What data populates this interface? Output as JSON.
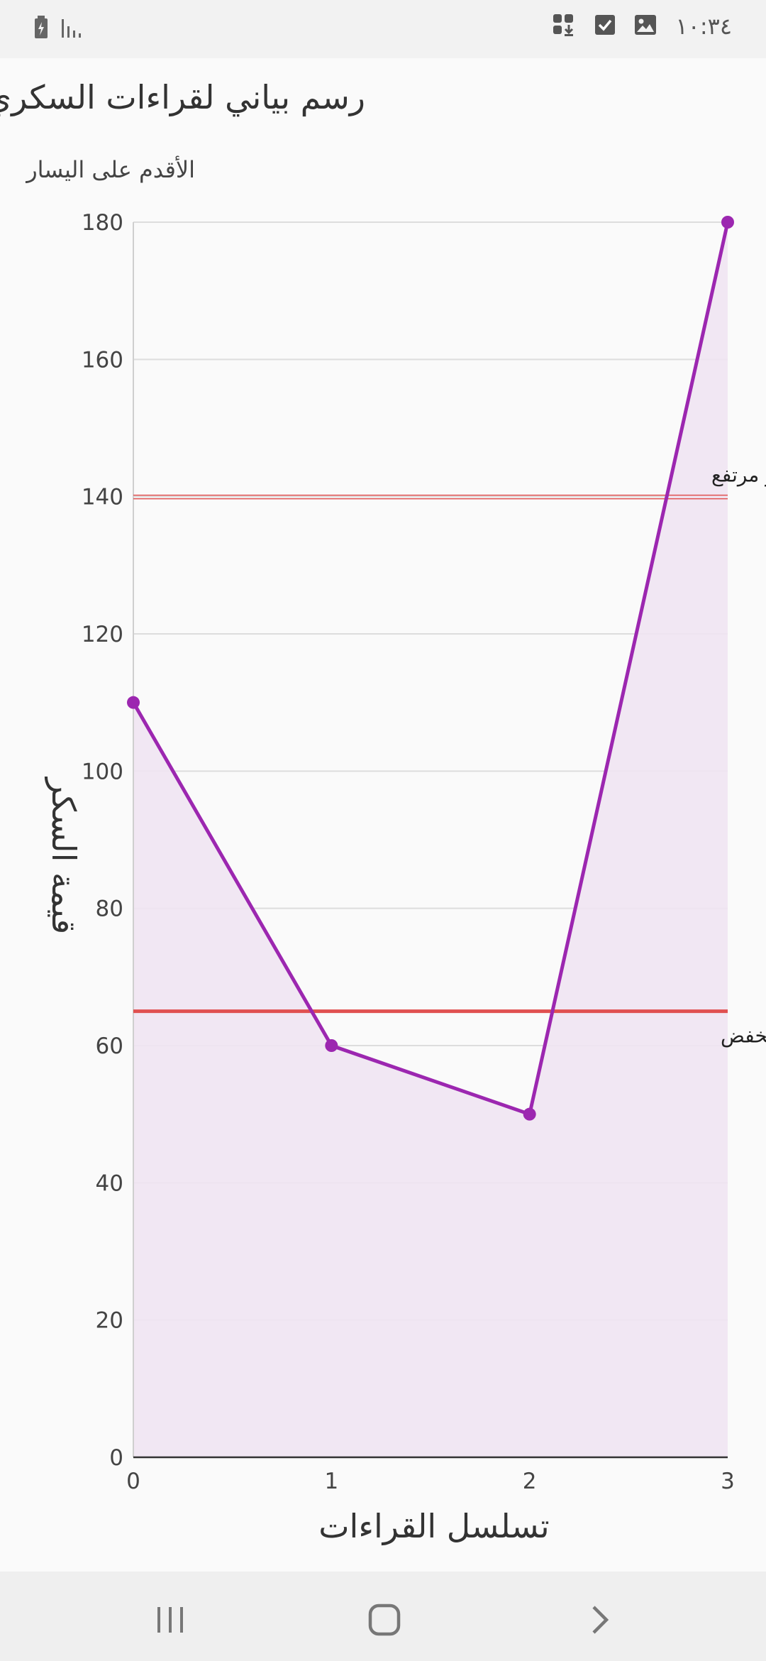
{
  "status_bar": {
    "time": "١٠:٣٤",
    "left_icons": [
      "battery-charging-icon",
      "signal-icon"
    ],
    "right_icons": [
      "app-download-icon",
      "checkbox-icon",
      "image-icon"
    ]
  },
  "page": {
    "title": "رسم بياني لقراءات السكري",
    "subtitle": "الأقدم على اليسار"
  },
  "chart_data": {
    "type": "line",
    "x": [
      0,
      1,
      2,
      3
    ],
    "x_ticks": [
      "0",
      "1",
      "2",
      "3"
    ],
    "y_ticks": [
      "0",
      "20",
      "40",
      "60",
      "80",
      "100",
      "120",
      "140",
      "160",
      "180"
    ],
    "series": [
      {
        "values": [
          110,
          60,
          50,
          180
        ]
      }
    ],
    "xlabel": "تسلسل القراءات",
    "ylabel": "قيمة السكر",
    "xlim": [
      0,
      3
    ],
    "ylim": [
      0,
      180
    ],
    "grid": true,
    "area_fill": true,
    "reference_lines": [
      {
        "label": "مستوى السكر مرتفع",
        "value": 140
      },
      {
        "label": "مستوى السكر منخفض",
        "value": 65
      }
    ],
    "colors": {
      "line": "#9c27b0",
      "fill": "#f0e4f2",
      "reference": "#e05050",
      "grid": "#dddddd"
    }
  },
  "nav_bar": {
    "icons": [
      "recent-apps-icon",
      "home-icon",
      "back-icon"
    ]
  }
}
